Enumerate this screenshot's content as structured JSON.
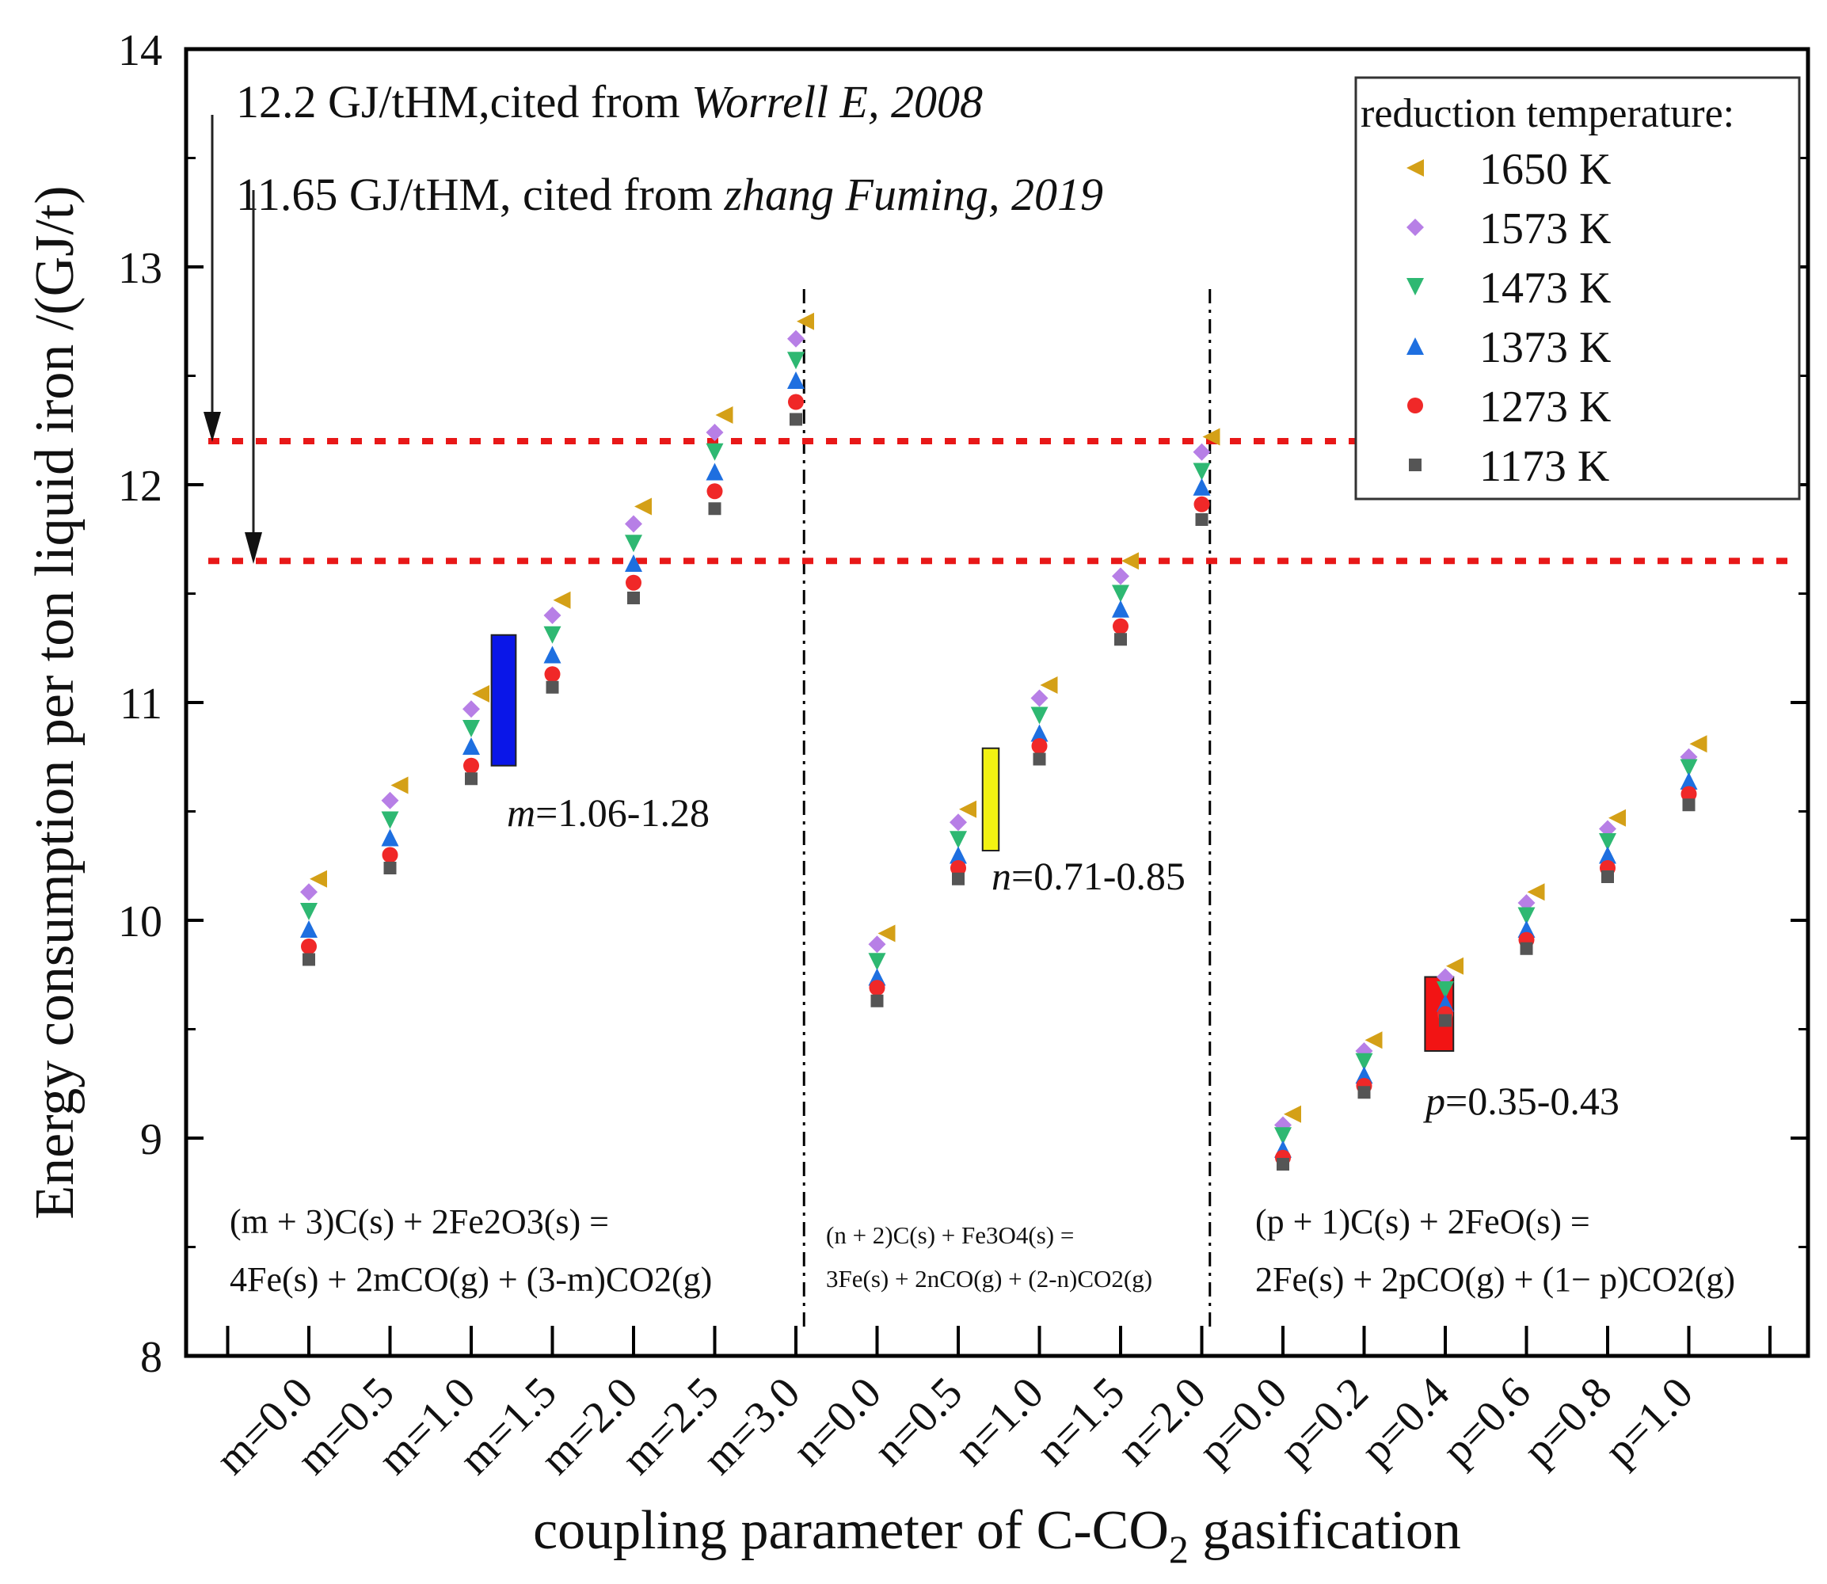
{
  "chart_data": {
    "type": "scatter",
    "title": "",
    "xlabel_main": "coupling parameter of C-CO",
    "xlabel_sub": "2",
    "xlabel_tail": " gasification",
    "ylabel": "Energy consumption per ton liquid iron /(GJ/t)",
    "ylim": [
      8,
      14
    ],
    "yticks": [
      "8",
      "9",
      "10",
      "11",
      "12",
      "13",
      "14"
    ],
    "categories": [
      "m=0.0",
      "m=0.5",
      "m=1.0",
      "m=1.5",
      "m=2.0",
      "m=2.5",
      "m=3.0",
      "n=0.0",
      "n=0.5",
      "n=1.0",
      "n=1.5",
      "n=2.0",
      "p=0.0",
      "p=0.2",
      "p=0.4",
      "p=0.6",
      "p=0.8",
      "p=1.0"
    ],
    "legend_title": "reduction temperature:",
    "legend_position": "top-right",
    "series": [
      {
        "name": "1650 K",
        "marker": "triangle-left",
        "color": "#D4A017",
        "values": [
          10.19,
          10.62,
          11.04,
          11.47,
          11.9,
          12.32,
          12.75,
          9.94,
          10.51,
          11.08,
          11.65,
          12.22,
          9.11,
          9.45,
          9.79,
          10.13,
          10.47,
          10.81
        ]
      },
      {
        "name": "1573 K",
        "marker": "diamond",
        "color": "#B77FE6",
        "values": [
          10.13,
          10.55,
          10.97,
          11.4,
          11.82,
          12.24,
          12.67,
          9.89,
          10.45,
          11.02,
          11.58,
          12.15,
          9.06,
          9.4,
          9.74,
          10.08,
          10.42,
          10.75
        ]
      },
      {
        "name": "1473 K",
        "marker": "triangle-down",
        "color": "#2EB872",
        "values": [
          10.04,
          10.46,
          10.88,
          11.31,
          11.73,
          12.15,
          12.57,
          9.81,
          10.37,
          10.94,
          11.5,
          12.06,
          9.01,
          9.35,
          9.68,
          10.02,
          10.36,
          10.7
        ]
      },
      {
        "name": "1373 K",
        "marker": "triangle-up",
        "color": "#1E6FE0",
        "values": [
          9.96,
          10.38,
          10.8,
          11.22,
          11.64,
          12.06,
          12.48,
          9.74,
          10.3,
          10.86,
          11.43,
          11.99,
          8.95,
          9.29,
          9.62,
          9.96,
          10.3,
          10.64
        ]
      },
      {
        "name": "1273 K",
        "marker": "circle",
        "color": "#F02828",
        "values": [
          9.88,
          10.3,
          10.71,
          11.13,
          11.55,
          11.97,
          12.38,
          9.69,
          10.24,
          10.8,
          11.35,
          11.91,
          8.91,
          9.24,
          9.57,
          9.91,
          10.24,
          10.58
        ]
      },
      {
        "name": "1173 K",
        "marker": "square",
        "color": "#555555",
        "values": [
          9.82,
          10.24,
          10.65,
          11.07,
          11.48,
          11.89,
          12.3,
          9.63,
          10.19,
          10.74,
          11.29,
          11.84,
          8.88,
          9.21,
          9.54,
          9.87,
          10.2,
          10.53
        ]
      }
    ],
    "reference_lines": [
      {
        "value": 12.2,
        "color": "#E81818",
        "style": "dotted",
        "prefix": "12.2 GJ/tHM,cited from ",
        "source": "Worrell E, 2008"
      },
      {
        "value": 11.65,
        "color": "#E81818",
        "style": "dotted",
        "prefix": "11.65 GJ/tHM, cited from ",
        "source": "zhang Fuming, 2019"
      }
    ],
    "optimal_ranges": [
      {
        "var": "m",
        "range": "=1.06-1.28",
        "color": "#0A16E8",
        "x_from": 2.25,
        "x_to": 2.55,
        "y_from": 10.71,
        "y_to": 11.31
      },
      {
        "var": "n",
        "range": "=0.71-0.85",
        "color": "#F2F212",
        "x_from": 8.3,
        "x_to": 8.5,
        "y_from": 10.32,
        "y_to": 10.79
      },
      {
        "var": "p",
        "range": "=0.35-0.43",
        "color": "#F21414",
        "x_from": 13.75,
        "x_to": 14.1,
        "y_from": 9.4,
        "y_to": 9.74
      }
    ],
    "separators_after_index": [
      6,
      11
    ],
    "equations": {
      "m": {
        "line1": "(m + 3)C(s) + 2Fe2O3(s) =",
        "line2": "4Fe(s) + 2mCO(g) + (3-m)CO2(g)"
      },
      "n": {
        "line1": "(n + 2)C(s) + Fe3O4(s) =",
        "line2": "3Fe(s) + 2nCO(g) + (2-n)CO2(g)"
      },
      "p": {
        "line1": "(p + 1)C(s) + 2FeO(s) =",
        "line2": "2Fe(s) + 2pCO(g) + (1− p)CO2(g)"
      }
    }
  }
}
